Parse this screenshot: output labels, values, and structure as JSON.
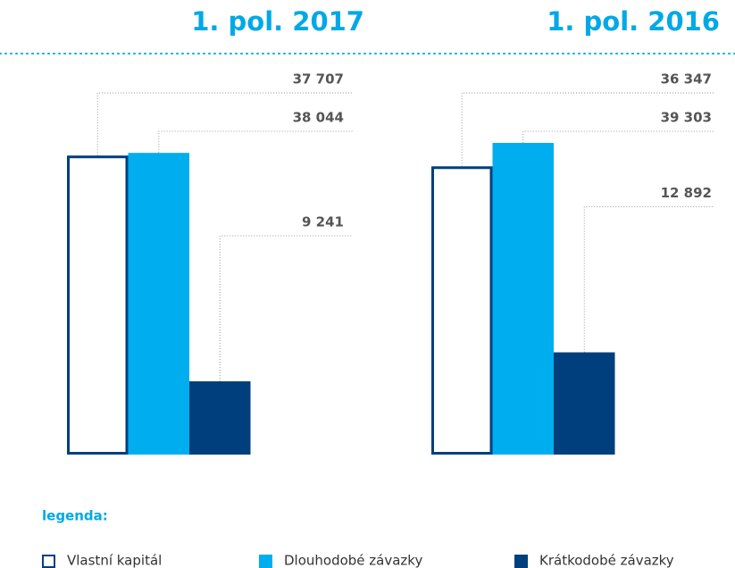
{
  "chart_data": {
    "type": "bar",
    "categories": [
      "1. pol. 2017",
      "1. pol. 2016"
    ],
    "series": [
      {
        "name": "Vlastní kapitál",
        "color": "#003f7d",
        "values": [
          37707,
          36347
        ],
        "value_labels": [
          "37 707",
          "36 347"
        ]
      },
      {
        "name": "Dlouhodobé závazky",
        "color": "#00aeef",
        "values": [
          38044,
          39303
        ],
        "value_labels": [
          "38 044",
          "39 303"
        ]
      },
      {
        "name": "Krátkodobé závazky",
        "color": "#003f7d",
        "values": [
          9241,
          12892
        ],
        "value_labels": [
          "9 241",
          "12 892"
        ]
      }
    ],
    "legend_title": "legenda:"
  }
}
